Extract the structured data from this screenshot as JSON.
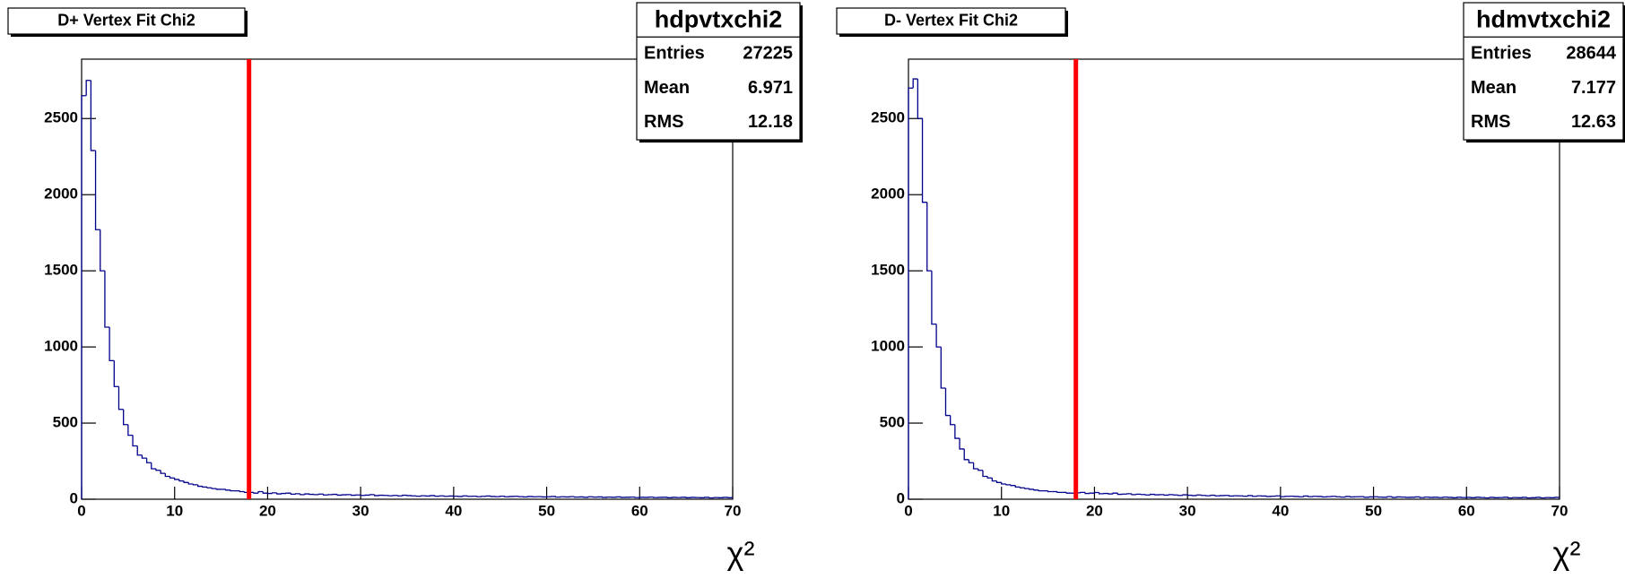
{
  "chart_data": [
    {
      "type": "histogram",
      "title": "D+ Vertex Fit Chi2",
      "xlabel": "χ²",
      "stats": {
        "name": "hdpvtxchi2",
        "rows": [
          {
            "label": "Entries",
            "value": 27225
          },
          {
            "label": "Mean",
            "value": 6.971
          },
          {
            "label": "RMS",
            "value": 12.18
          }
        ]
      },
      "color": "#00008b",
      "cut": {
        "x": 18,
        "color": "#ff0000"
      },
      "bins": [
        0,
        0.5,
        1,
        1.5,
        2,
        2.5,
        3,
        3.5,
        4,
        4.5,
        5,
        5.5,
        6,
        6.5,
        7,
        7.5,
        8,
        8.5,
        9,
        9.5,
        10,
        10.5,
        11,
        11.5,
        12,
        12.5,
        13,
        13.5,
        14,
        14.5,
        15,
        15.5,
        16,
        16.5,
        17,
        17.5,
        18,
        18.5,
        19,
        19.5,
        20,
        20.5,
        21,
        21.5,
        22,
        22.5,
        23,
        23.5,
        24,
        24.5,
        25,
        25.5,
        26,
        26.5,
        27,
        27.5,
        28,
        28.5,
        29,
        29.5,
        30,
        30.5,
        31,
        31.5,
        32,
        32.5,
        33,
        33.5,
        34,
        34.5,
        35,
        35.5,
        36,
        36.5,
        37,
        37.5,
        38,
        38.5,
        39,
        39.5,
        40,
        40.5,
        41,
        41.5,
        42,
        42.5,
        43,
        43.5,
        44,
        44.5,
        45,
        45.5,
        46,
        46.5,
        47,
        47.5,
        48,
        48.5,
        49,
        49.5,
        50,
        50.5,
        51,
        51.5,
        52,
        52.5,
        53,
        53.5,
        54,
        54.5,
        55,
        55.5,
        56,
        56.5,
        57,
        57.5,
        58,
        58.5,
        59,
        59.5,
        60,
        60.5,
        61,
        61.5,
        62,
        62.5,
        63,
        63.5,
        64,
        64.5,
        65,
        65.5,
        66,
        66.5,
        67,
        67.5,
        68,
        68.5,
        69,
        69.5,
        70
      ],
      "counts": [
        2650,
        2750,
        2290,
        1770,
        1500,
        1130,
        910,
        740,
        590,
        490,
        420,
        350,
        290,
        270,
        240,
        200,
        190,
        170,
        150,
        140,
        130,
        120,
        110,
        100,
        95,
        85,
        80,
        75,
        70,
        65,
        65,
        60,
        55,
        55,
        50,
        45,
        45,
        40,
        50,
        40,
        38,
        42,
        35,
        38,
        40,
        33,
        36,
        30,
        35,
        32,
        30,
        34,
        28,
        30,
        32,
        27,
        29,
        30,
        26,
        28,
        25,
        27,
        30,
        24,
        26,
        25,
        23,
        25,
        22,
        26,
        24,
        22,
        20,
        23,
        21,
        24,
        20,
        22,
        19,
        21,
        20,
        18,
        22,
        19,
        20,
        17,
        19,
        21,
        18,
        17,
        20,
        16,
        18,
        19,
        17,
        15,
        18,
        16,
        17,
        15,
        16,
        18,
        14,
        16,
        15,
        17,
        14,
        15,
        13,
        16,
        14,
        15,
        12,
        14,
        13,
        15,
        12,
        13,
        14,
        11,
        13,
        12,
        14,
        11,
        12,
        13,
        10,
        12,
        11,
        13,
        10,
        12,
        11,
        10,
        12,
        9,
        11,
        10,
        12,
        10
      ],
      "xlim": [
        0,
        70
      ],
      "ylim": [
        0,
        2890
      ],
      "xticks": [
        0,
        10,
        20,
        30,
        40,
        50,
        60,
        70
      ],
      "yticks": [
        0,
        500,
        1000,
        1500,
        2000,
        2500
      ]
    },
    {
      "type": "histogram",
      "title": "D- Vertex Fit Chi2",
      "xlabel": "χ²",
      "stats": {
        "name": "hdmvtxchi2",
        "rows": [
          {
            "label": "Entries",
            "value": 28644
          },
          {
            "label": "Mean",
            "value": 7.177
          },
          {
            "label": "RMS",
            "value": 12.63
          }
        ]
      },
      "color": "#00008b",
      "cut": {
        "x": 18,
        "color": "#ff0000"
      },
      "bins": [
        0,
        0.5,
        1,
        1.5,
        2,
        2.5,
        3,
        3.5,
        4,
        4.5,
        5,
        5.5,
        6,
        6.5,
        7,
        7.5,
        8,
        8.5,
        9,
        9.5,
        10,
        10.5,
        11,
        11.5,
        12,
        12.5,
        13,
        13.5,
        14,
        14.5,
        15,
        15.5,
        16,
        16.5,
        17,
        17.5,
        18,
        18.5,
        19,
        19.5,
        20,
        20.5,
        21,
        21.5,
        22,
        22.5,
        23,
        23.5,
        24,
        24.5,
        25,
        25.5,
        26,
        26.5,
        27,
        27.5,
        28,
        28.5,
        29,
        29.5,
        30,
        30.5,
        31,
        31.5,
        32,
        32.5,
        33,
        33.5,
        34,
        34.5,
        35,
        35.5,
        36,
        36.5,
        37,
        37.5,
        38,
        38.5,
        39,
        39.5,
        40,
        40.5,
        41,
        41.5,
        42,
        42.5,
        43,
        43.5,
        44,
        44.5,
        45,
        45.5,
        46,
        46.5,
        47,
        47.5,
        48,
        48.5,
        49,
        49.5,
        50,
        50.5,
        51,
        51.5,
        52,
        52.5,
        53,
        53.5,
        54,
        54.5,
        55,
        55.5,
        56,
        56.5,
        57,
        57.5,
        58,
        58.5,
        59,
        59.5,
        60,
        60.5,
        61,
        61.5,
        62,
        62.5,
        63,
        63.5,
        64,
        64.5,
        65,
        65.5,
        66,
        66.5,
        67,
        67.5,
        68,
        68.5,
        69,
        69.5,
        70
      ],
      "counts": [
        2700,
        2760,
        2500,
        1950,
        1500,
        1150,
        1000,
        730,
        550,
        490,
        400,
        330,
        260,
        240,
        200,
        190,
        150,
        140,
        120,
        110,
        100,
        95,
        90,
        80,
        75,
        70,
        65,
        60,
        55,
        55,
        50,
        50,
        45,
        45,
        40,
        40,
        42,
        45,
        38,
        40,
        44,
        36,
        38,
        35,
        40,
        32,
        34,
        36,
        30,
        33,
        31,
        28,
        32,
        29,
        30,
        27,
        30,
        28,
        25,
        29,
        26,
        24,
        28,
        25,
        23,
        26,
        22,
        24,
        25,
        21,
        23,
        22,
        20,
        24,
        19,
        22,
        21,
        18,
        20,
        22,
        17,
        19,
        20,
        18,
        16,
        21,
        17,
        19,
        18,
        15,
        17,
        19,
        16,
        14,
        18,
        15,
        16,
        17,
        13,
        15,
        16,
        14,
        13,
        17,
        12,
        15,
        14,
        12,
        13,
        15,
        11,
        14,
        12,
        13,
        11,
        14,
        12,
        10,
        13,
        11,
        12,
        10,
        13,
        11,
        9,
        12,
        10,
        11,
        13,
        9,
        11,
        10,
        12,
        9,
        10,
        12,
        9,
        11,
        10,
        12
      ],
      "xlim": [
        0,
        70
      ],
      "ylim": [
        0,
        2890
      ],
      "xticks": [
        0,
        10,
        20,
        30,
        40,
        50,
        60,
        70
      ],
      "yticks": [
        0,
        500,
        1000,
        1500,
        2000,
        2500
      ]
    }
  ]
}
